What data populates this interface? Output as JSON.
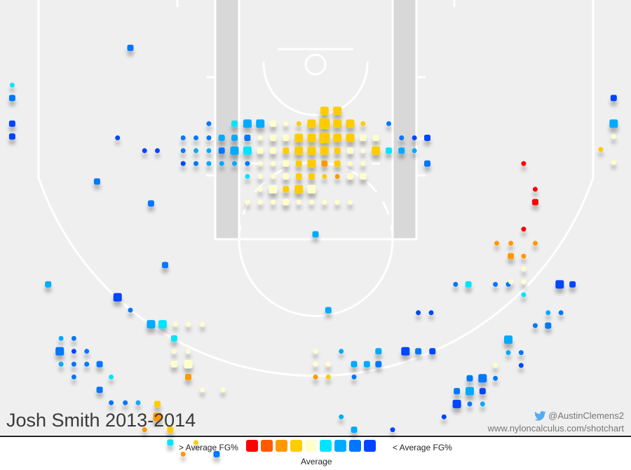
{
  "title": "Josh Smith 2013-2014",
  "credit": {
    "handle": "@AustinClemens2",
    "url": "www.nyloncalculus.com/shotchart"
  },
  "legend": {
    "above_label": "> Average FG%",
    "below_label": "< Average FG%",
    "middle_label": "Average",
    "colors": [
      "#ff0000",
      "#ff5a00",
      "#ff9900",
      "#ffcc00",
      "#ffffcc",
      "#00e5ff",
      "#00aaff",
      "#0077ff",
      "#0044ff"
    ]
  },
  "colors": {
    "court_bg": "#efefef",
    "lane": "#d8d8d8",
    "lines": "#ffffff",
    "title_text": "#3a3a3a",
    "credit_text": "#777777",
    "twitter": "#55acee"
  },
  "icons": {
    "credit": "twitter-bird-icon"
  },
  "chart_data": {
    "type": "scatter",
    "title": "Josh Smith 2013-2014",
    "x_units": "feet from basket center (negative = left)",
    "y_units": "feet from baseline",
    "xlim": [
      -25,
      25
    ],
    "ylim": [
      -1,
      34
    ],
    "marker_shape": "rounded-square",
    "size_scale": "1 = fewest attempts, 5 = most attempts",
    "color_scale": "level 0 = far above league average FG% (red) ... level 4 = average (pale yellow) ... level 8 = far below average (blue)",
    "points": [
      {
        "x": 0.7,
        "y": 3.6,
        "s": 3,
        "c": 3
      },
      {
        "x": 1.7,
        "y": 3.6,
        "s": 3,
        "c": 3
      },
      {
        "x": -8.3,
        "y": 4.6,
        "s": 1,
        "c": 7
      },
      {
        "x": -6.3,
        "y": 4.6,
        "s": 2,
        "c": 5
      },
      {
        "x": -5.3,
        "y": 4.6,
        "s": 3,
        "c": 6
      },
      {
        "x": -4.3,
        "y": 4.6,
        "s": 3,
        "c": 6
      },
      {
        "x": -3.3,
        "y": 4.6,
        "s": 2,
        "c": 4
      },
      {
        "x": -2.3,
        "y": 4.6,
        "s": 1,
        "c": 4
      },
      {
        "x": -1.3,
        "y": 4.6,
        "s": 1,
        "c": 3
      },
      {
        "x": -0.3,
        "y": 4.6,
        "s": 3,
        "c": 3
      },
      {
        "x": 0.7,
        "y": 4.6,
        "s": 4,
        "c": 3
      },
      {
        "x": 1.7,
        "y": 4.6,
        "s": 3,
        "c": 3
      },
      {
        "x": 2.7,
        "y": 4.6,
        "s": 3,
        "c": 3
      },
      {
        "x": 3.7,
        "y": 4.6,
        "s": 1,
        "c": 3
      },
      {
        "x": 5.7,
        "y": 4.6,
        "s": 1,
        "c": 7
      },
      {
        "x": -10.3,
        "y": 5.7,
        "s": 1,
        "c": 7
      },
      {
        "x": -9.3,
        "y": 5.7,
        "s": 1,
        "c": 7
      },
      {
        "x": -8.3,
        "y": 5.7,
        "s": 1,
        "c": 7
      },
      {
        "x": -7.3,
        "y": 5.7,
        "s": 2,
        "c": 6
      },
      {
        "x": -6.3,
        "y": 5.7,
        "s": 2,
        "c": 6
      },
      {
        "x": -5.3,
        "y": 5.7,
        "s": 2,
        "c": 7
      },
      {
        "x": -4.3,
        "y": 5.7,
        "s": 1,
        "c": 4
      },
      {
        "x": -3.3,
        "y": 5.7,
        "s": 2,
        "c": 4
      },
      {
        "x": -2.3,
        "y": 5.7,
        "s": 2,
        "c": 4
      },
      {
        "x": -1.3,
        "y": 5.7,
        "s": 3,
        "c": 3
      },
      {
        "x": -0.3,
        "y": 5.7,
        "s": 3,
        "c": 3
      },
      {
        "x": 0.7,
        "y": 5.7,
        "s": 4,
        "c": 3
      },
      {
        "x": 1.7,
        "y": 5.7,
        "s": 3,
        "c": 3
      },
      {
        "x": 2.7,
        "y": 5.7,
        "s": 3,
        "c": 3
      },
      {
        "x": 3.7,
        "y": 5.7,
        "s": 2,
        "c": 4
      },
      {
        "x": 4.7,
        "y": 5.7,
        "s": 2,
        "c": 4
      },
      {
        "x": 6.7,
        "y": 5.7,
        "s": 1,
        "c": 7
      },
      {
        "x": 7.7,
        "y": 5.7,
        "s": 1,
        "c": 8
      },
      {
        "x": 8.7,
        "y": 5.7,
        "s": 2,
        "c": 8
      },
      {
        "x": -13.3,
        "y": 6.7,
        "s": 1,
        "c": 8
      },
      {
        "x": -12.3,
        "y": 6.7,
        "s": 1,
        "c": 8
      },
      {
        "x": -10.3,
        "y": 6.7,
        "s": 1,
        "c": 7
      },
      {
        "x": -9.3,
        "y": 6.7,
        "s": 1,
        "c": 6
      },
      {
        "x": -8.3,
        "y": 6.7,
        "s": 1,
        "c": 6
      },
      {
        "x": -7.3,
        "y": 6.7,
        "s": 2,
        "c": 7
      },
      {
        "x": -6.3,
        "y": 6.7,
        "s": 3,
        "c": 6
      },
      {
        "x": -5.3,
        "y": 6.7,
        "s": 3,
        "c": 5
      },
      {
        "x": -4.3,
        "y": 6.7,
        "s": 2,
        "c": 4
      },
      {
        "x": -3.3,
        "y": 6.7,
        "s": 2,
        "c": 4
      },
      {
        "x": -2.3,
        "y": 6.7,
        "s": 2,
        "c": 3
      },
      {
        "x": -1.3,
        "y": 6.7,
        "s": 3,
        "c": 3
      },
      {
        "x": -0.3,
        "y": 6.7,
        "s": 3,
        "c": 3
      },
      {
        "x": 0.7,
        "y": 6.7,
        "s": 3,
        "c": 3
      },
      {
        "x": 1.7,
        "y": 6.7,
        "s": 2,
        "c": 3
      },
      {
        "x": 2.7,
        "y": 6.7,
        "s": 2,
        "c": 4
      },
      {
        "x": 3.7,
        "y": 6.7,
        "s": 1,
        "c": 4
      },
      {
        "x": 4.7,
        "y": 6.7,
        "s": 3,
        "c": 3
      },
      {
        "x": 5.7,
        "y": 6.7,
        "s": 2,
        "c": 5
      },
      {
        "x": 6.7,
        "y": 6.7,
        "s": 2,
        "c": 6
      },
      {
        "x": 7.7,
        "y": 6.7,
        "s": 1,
        "c": 6
      },
      {
        "x": -10.3,
        "y": 7.7,
        "s": 1,
        "c": 8
      },
      {
        "x": -9.3,
        "y": 7.7,
        "s": 1,
        "c": 7
      },
      {
        "x": -8.3,
        "y": 7.7,
        "s": 1,
        "c": 6
      },
      {
        "x": -7.3,
        "y": 7.7,
        "s": 1,
        "c": 6
      },
      {
        "x": -6.3,
        "y": 7.7,
        "s": 1,
        "c": 6
      },
      {
        "x": -5.3,
        "y": 7.7,
        "s": 1,
        "c": 7
      },
      {
        "x": -4.3,
        "y": 7.7,
        "s": 1,
        "c": 4
      },
      {
        "x": -3.3,
        "y": 7.7,
        "s": 1,
        "c": 4
      },
      {
        "x": -2.3,
        "y": 7.7,
        "s": 2,
        "c": 4
      },
      {
        "x": -1.3,
        "y": 7.7,
        "s": 2,
        "c": 3
      },
      {
        "x": -0.3,
        "y": 7.7,
        "s": 3,
        "c": 3
      },
      {
        "x": 0.7,
        "y": 7.7,
        "s": 2,
        "c": 2
      },
      {
        "x": 1.7,
        "y": 7.7,
        "s": 2,
        "c": 3
      },
      {
        "x": 2.7,
        "y": 7.7,
        "s": 1,
        "c": 4
      },
      {
        "x": 3.7,
        "y": 7.7,
        "s": 1,
        "c": 4
      },
      {
        "x": 8.7,
        "y": 7.7,
        "s": 2,
        "c": 7
      },
      {
        "x": -5.3,
        "y": 8.7,
        "s": 1,
        "c": 5
      },
      {
        "x": -4.3,
        "y": 8.7,
        "s": 1,
        "c": 4
      },
      {
        "x": -3.3,
        "y": 8.7,
        "s": 1,
        "c": 4
      },
      {
        "x": -2.3,
        "y": 8.7,
        "s": 2,
        "c": 4
      },
      {
        "x": -1.3,
        "y": 8.7,
        "s": 2,
        "c": 3
      },
      {
        "x": -0.3,
        "y": 8.7,
        "s": 2,
        "c": 3
      },
      {
        "x": 0.7,
        "y": 8.7,
        "s": 1,
        "c": 3
      },
      {
        "x": 1.7,
        "y": 8.7,
        "s": 1,
        "c": 2
      },
      {
        "x": 2.7,
        "y": 8.7,
        "s": 2,
        "c": 4
      },
      {
        "x": 3.7,
        "y": 8.7,
        "s": 2,
        "c": 4
      },
      {
        "x": -4.3,
        "y": 9.7,
        "s": 1,
        "c": 4
      },
      {
        "x": -3.3,
        "y": 9.7,
        "s": 3,
        "c": 4
      },
      {
        "x": -2.3,
        "y": 9.7,
        "s": 2,
        "c": 3
      },
      {
        "x": -1.3,
        "y": 9.7,
        "s": 3,
        "c": 3
      },
      {
        "x": -0.3,
        "y": 9.7,
        "s": 3,
        "c": 4
      },
      {
        "x": -5.3,
        "y": 10.7,
        "s": 1,
        "c": 4
      },
      {
        "x": -4.3,
        "y": 10.7,
        "s": 1,
        "c": 4
      },
      {
        "x": -3.3,
        "y": 10.7,
        "s": 1,
        "c": 4
      },
      {
        "x": -2.3,
        "y": 10.7,
        "s": 2,
        "c": 4
      },
      {
        "x": -1.3,
        "y": 10.7,
        "s": 1,
        "c": 4
      },
      {
        "x": -0.3,
        "y": 10.7,
        "s": 1,
        "c": 4
      },
      {
        "x": 0.7,
        "y": 10.7,
        "s": 1,
        "c": 4
      },
      {
        "x": 1.7,
        "y": 10.7,
        "s": 1,
        "c": 4
      },
      {
        "x": 2.7,
        "y": 10.7,
        "s": 1,
        "c": 4
      },
      {
        "x": -23.6,
        "y": 1.6,
        "s": 1,
        "c": 5
      },
      {
        "x": -23.6,
        "y": 2.6,
        "s": 2,
        "c": 7
      },
      {
        "x": -23.6,
        "y": 4.6,
        "s": 2,
        "c": 8
      },
      {
        "x": -23.6,
        "y": 5.6,
        "s": 2,
        "c": 8
      },
      {
        "x": -17.0,
        "y": 9.1,
        "s": 2,
        "c": 7
      },
      {
        "x": -15.4,
        "y": 5.7,
        "s": 1,
        "c": 8
      },
      {
        "x": -12.8,
        "y": 10.8,
        "s": 2,
        "c": 7
      },
      {
        "x": -14.4,
        "y": -1.3,
        "s": 2,
        "c": 7
      },
      {
        "x": -11.7,
        "y": 15.6,
        "s": 2,
        "c": 7
      },
      {
        "x": -20.8,
        "y": 17.1,
        "s": 2,
        "c": 6
      },
      {
        "x": -15.4,
        "y": 18.1,
        "s": 3,
        "c": 8
      },
      {
        "x": -14.4,
        "y": 19.1,
        "s": 1,
        "c": 7
      },
      {
        "x": -12.8,
        "y": 20.2,
        "s": 3,
        "c": 6
      },
      {
        "x": -11.9,
        "y": 20.2,
        "s": 3,
        "c": 5
      },
      {
        "x": -10.9,
        "y": 20.2,
        "s": 1,
        "c": 4
      },
      {
        "x": -9.9,
        "y": 20.2,
        "s": 1,
        "c": 4
      },
      {
        "x": -8.8,
        "y": 20.2,
        "s": 1,
        "c": 4
      },
      {
        "x": -19.8,
        "y": 21.3,
        "s": 1,
        "c": 6
      },
      {
        "x": -18.8,
        "y": 21.3,
        "s": 1,
        "c": 7
      },
      {
        "x": -11.0,
        "y": 21.3,
        "s": 2,
        "c": 5
      },
      {
        "x": -19.9,
        "y": 22.3,
        "s": 3,
        "c": 7
      },
      {
        "x": -18.8,
        "y": 22.3,
        "s": 1,
        "c": 8
      },
      {
        "x": -17.8,
        "y": 22.3,
        "s": 1,
        "c": 7
      },
      {
        "x": -11.0,
        "y": 22.3,
        "s": 1,
        "c": 4
      },
      {
        "x": -9.9,
        "y": 22.3,
        "s": 1,
        "c": 4
      },
      {
        "x": -19.8,
        "y": 23.3,
        "s": 1,
        "c": 6
      },
      {
        "x": -18.8,
        "y": 23.3,
        "s": 1,
        "c": 7
      },
      {
        "x": -17.8,
        "y": 23.3,
        "s": 1,
        "c": 7
      },
      {
        "x": -16.8,
        "y": 23.3,
        "s": 2,
        "c": 7
      },
      {
        "x": -11.0,
        "y": 23.3,
        "s": 2,
        "c": 4
      },
      {
        "x": -9.9,
        "y": 23.3,
        "s": 3,
        "c": 4
      },
      {
        "x": -18.8,
        "y": 24.3,
        "s": 1,
        "c": 7
      },
      {
        "x": -15.9,
        "y": 24.3,
        "s": 1,
        "c": 5
      },
      {
        "x": -9.9,
        "y": 24.3,
        "s": 2,
        "c": 2
      },
      {
        "x": -16.8,
        "y": 25.3,
        "s": 2,
        "c": 7
      },
      {
        "x": -8.8,
        "y": 25.3,
        "s": 1,
        "c": 4
      },
      {
        "x": -7.2,
        "y": 25.3,
        "s": 1,
        "c": 4
      },
      {
        "x": -15.9,
        "y": 26.3,
        "s": 1,
        "c": 7
      },
      {
        "x": -14.8,
        "y": 26.3,
        "s": 1,
        "c": 7
      },
      {
        "x": -13.8,
        "y": 26.3,
        "s": 1,
        "c": 6
      },
      {
        "x": -12.3,
        "y": 26.4,
        "s": 2,
        "c": 3
      },
      {
        "x": -12.3,
        "y": 27.4,
        "s": 3,
        "c": 2
      },
      {
        "x": -13.3,
        "y": 28.4,
        "s": 1,
        "c": 2
      },
      {
        "x": -11.3,
        "y": 28.4,
        "s": 2,
        "c": 3
      },
      {
        "x": -11.3,
        "y": 29.4,
        "s": 2,
        "c": 5
      },
      {
        "x": -9.3,
        "y": 29.4,
        "s": 1,
        "c": 3
      },
      {
        "x": -10.3,
        "y": 30.3,
        "s": 1,
        "c": 2
      },
      {
        "x": -7.7,
        "y": 30.3,
        "s": 2,
        "c": 7
      },
      {
        "x": 0.0,
        "y": 13.2,
        "s": 2,
        "c": 6
      },
      {
        "x": 1.0,
        "y": 19.1,
        "s": 2,
        "c": 6
      },
      {
        "x": 0.0,
        "y": 22.3,
        "s": 1,
        "c": 4
      },
      {
        "x": 2.0,
        "y": 22.3,
        "s": 1,
        "c": 6
      },
      {
        "x": 4.9,
        "y": 22.3,
        "s": 2,
        "c": 6
      },
      {
        "x": 7.0,
        "y": 22.3,
        "s": 3,
        "c": 8
      },
      {
        "x": 8.0,
        "y": 22.3,
        "s": 2,
        "c": 7
      },
      {
        "x": 9.1,
        "y": 22.3,
        "s": 2,
        "c": 8
      },
      {
        "x": 0.0,
        "y": 23.3,
        "s": 1,
        "c": 4
      },
      {
        "x": 1.0,
        "y": 23.3,
        "s": 1,
        "c": 4
      },
      {
        "x": 3.0,
        "y": 23.3,
        "s": 2,
        "c": 6
      },
      {
        "x": 4.0,
        "y": 23.3,
        "s": 2,
        "c": 6
      },
      {
        "x": 4.9,
        "y": 23.3,
        "s": 2,
        "c": 7
      },
      {
        "x": 0.0,
        "y": 24.3,
        "s": 1,
        "c": 2
      },
      {
        "x": 1.0,
        "y": 24.3,
        "s": 1,
        "c": 3
      },
      {
        "x": 3.0,
        "y": 24.3,
        "s": 1,
        "c": 7
      },
      {
        "x": 2.0,
        "y": 27.4,
        "s": 1,
        "c": 6
      },
      {
        "x": 3.0,
        "y": 28.4,
        "s": 2,
        "c": 6
      },
      {
        "x": 6.0,
        "y": 28.4,
        "s": 1,
        "c": 8
      },
      {
        "x": 1.0,
        "y": 29.4,
        "s": 1,
        "c": 8
      },
      {
        "x": 2.0,
        "y": 29.4,
        "s": 1,
        "c": 8
      },
      {
        "x": 3.0,
        "y": 29.4,
        "s": 1,
        "c": 7
      },
      {
        "x": 10.9,
        "y": 17.1,
        "s": 1,
        "c": 7
      },
      {
        "x": 11.9,
        "y": 17.1,
        "s": 2,
        "c": 5
      },
      {
        "x": 14.0,
        "y": 17.1,
        "s": 1,
        "c": 7
      },
      {
        "x": 15.0,
        "y": 17.1,
        "s": 1,
        "c": 7
      },
      {
        "x": 19.0,
        "y": 17.1,
        "s": 3,
        "c": 8
      },
      {
        "x": 20.0,
        "y": 17.1,
        "s": 2,
        "c": 8
      },
      {
        "x": 8.0,
        "y": 19.3,
        "s": 1,
        "c": 8
      },
      {
        "x": 9.0,
        "y": 19.3,
        "s": 1,
        "c": 8
      },
      {
        "x": 18.1,
        "y": 19.3,
        "s": 1,
        "c": 6
      },
      {
        "x": 19.1,
        "y": 19.3,
        "s": 1,
        "c": 7
      },
      {
        "x": 17.1,
        "y": 20.3,
        "s": 1,
        "c": 7
      },
      {
        "x": 18.1,
        "y": 20.3,
        "s": 2,
        "c": 7
      },
      {
        "x": 15.0,
        "y": 21.4,
        "s": 3,
        "c": 6
      },
      {
        "x": 15.0,
        "y": 22.4,
        "s": 1,
        "c": 6
      },
      {
        "x": 16.0,
        "y": 22.4,
        "s": 1,
        "c": 7
      },
      {
        "x": 14.0,
        "y": 23.4,
        "s": 1,
        "c": 4
      },
      {
        "x": 16.0,
        "y": 23.4,
        "s": 1,
        "c": 8
      },
      {
        "x": 12.0,
        "y": 24.4,
        "s": 2,
        "c": 7
      },
      {
        "x": 13.0,
        "y": 24.4,
        "s": 3,
        "c": 7
      },
      {
        "x": 14.0,
        "y": 24.4,
        "s": 1,
        "c": 7
      },
      {
        "x": 11.0,
        "y": 25.4,
        "s": 2,
        "c": 7
      },
      {
        "x": 12.0,
        "y": 25.4,
        "s": 3,
        "c": 6
      },
      {
        "x": 13.0,
        "y": 25.4,
        "s": 2,
        "c": 8
      },
      {
        "x": 11.0,
        "y": 26.4,
        "s": 3,
        "c": 8
      },
      {
        "x": 12.0,
        "y": 26.4,
        "s": 1,
        "c": 7
      },
      {
        "x": 13.0,
        "y": 26.4,
        "s": 1,
        "c": 6
      },
      {
        "x": 10.0,
        "y": 27.4,
        "s": 1,
        "c": 8
      },
      {
        "x": 16.2,
        "y": 7.7,
        "s": 1,
        "c": 0
      },
      {
        "x": 17.1,
        "y": 9.7,
        "s": 1,
        "c": 0
      },
      {
        "x": 17.1,
        "y": 10.7,
        "s": 2,
        "c": 0
      },
      {
        "x": 16.2,
        "y": 12.8,
        "s": 1,
        "c": 0
      },
      {
        "x": 14.1,
        "y": 13.9,
        "s": 1,
        "c": 2
      },
      {
        "x": 15.2,
        "y": 13.9,
        "s": 1,
        "c": 2
      },
      {
        "x": 17.1,
        "y": 13.9,
        "s": 1,
        "c": 2
      },
      {
        "x": 15.2,
        "y": 14.9,
        "s": 2,
        "c": 2
      },
      {
        "x": 16.2,
        "y": 14.9,
        "s": 1,
        "c": 2
      },
      {
        "x": 16.2,
        "y": 15.9,
        "s": 1,
        "c": 4
      },
      {
        "x": 15.2,
        "y": 16.9,
        "s": 1,
        "c": 4
      },
      {
        "x": 16.2,
        "y": 16.9,
        "s": 1,
        "c": 4
      },
      {
        "x": 16.2,
        "y": 17.9,
        "s": 1,
        "c": 5
      },
      {
        "x": 23.2,
        "y": 2.6,
        "s": 2,
        "c": 8
      },
      {
        "x": 23.2,
        "y": 4.6,
        "s": 3,
        "c": 6
      },
      {
        "x": 23.2,
        "y": 5.6,
        "s": 1,
        "c": 4
      },
      {
        "x": 22.2,
        "y": 6.6,
        "s": 1,
        "c": 3
      },
      {
        "x": 23.2,
        "y": 7.6,
        "s": 1,
        "c": 4
      }
    ]
  }
}
